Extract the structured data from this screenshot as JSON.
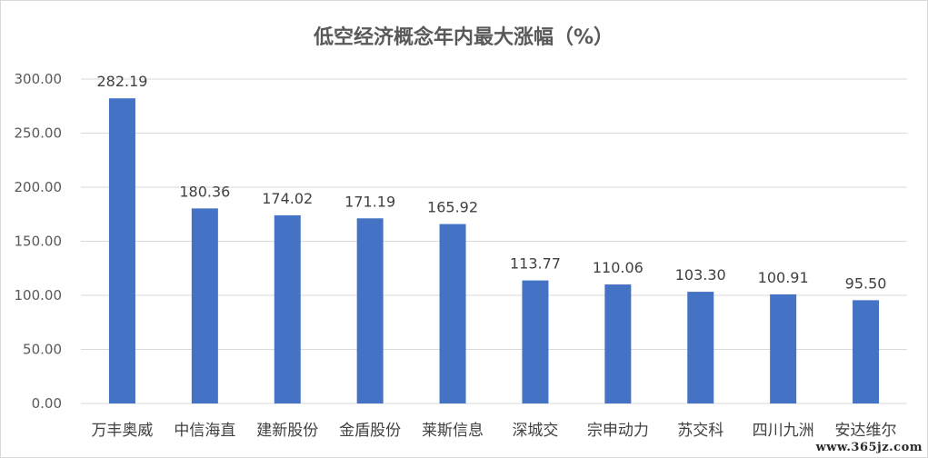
{
  "chart_data": {
    "type": "bar",
    "title": "低空经济概念年内最大涨幅（%）",
    "categories": [
      "万丰奥威",
      "中信海直",
      "建新股份",
      "金盾股份",
      "莱斯信息",
      "深城交",
      "宗申动力",
      "苏交科",
      "四川九洲",
      "安达维尔"
    ],
    "values": [
      282.19,
      180.36,
      174.02,
      171.19,
      165.92,
      113.77,
      110.06,
      103.3,
      100.91,
      95.5
    ],
    "data_labels": [
      "282.19",
      "180.36",
      "174.02",
      "171.19",
      "165.92",
      "113.77",
      "110.06",
      "103.30",
      "100.91",
      "95.50"
    ],
    "yticks": [
      "0.00",
      "50.00",
      "100.00",
      "150.00",
      "200.00",
      "250.00",
      "300.00"
    ],
    "ylim": [
      0,
      300
    ],
    "xlabel": "",
    "ylabel": "",
    "grid": true,
    "legend": "none",
    "bar_color": "#4472c4"
  },
  "watermark": "www.365jz.com"
}
